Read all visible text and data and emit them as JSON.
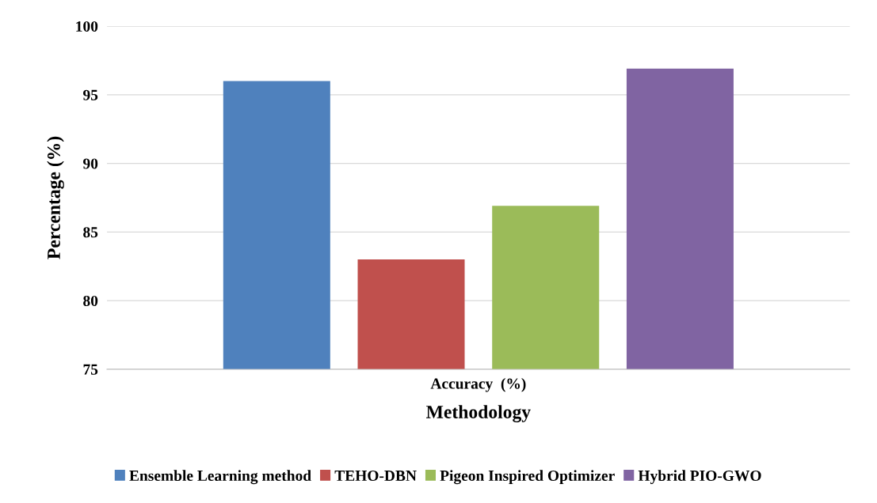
{
  "chart_data": {
    "type": "bar",
    "xlabel": "Methodology",
    "ylabel": "Percentage (%)",
    "categories": [
      "Accuracy  (%)"
    ],
    "series": [
      {
        "name": "Ensemble Learning method",
        "color": "#4f81bd",
        "values": [
          96
        ]
      },
      {
        "name": "TEHO-DBN",
        "color": "#c0504d",
        "values": [
          83
        ]
      },
      {
        "name": "Pigeon Inspired Optimizer",
        "color": "#9bbb59",
        "values": [
          86.9
        ]
      },
      {
        "name": "Hybrid PIO-GWO",
        "color": "#8064a2",
        "values": [
          96.9
        ]
      }
    ],
    "ylim": [
      75,
      100
    ],
    "yticks": [
      75,
      80,
      85,
      90,
      95,
      100
    ],
    "grid": "y",
    "legend": "bottom"
  }
}
